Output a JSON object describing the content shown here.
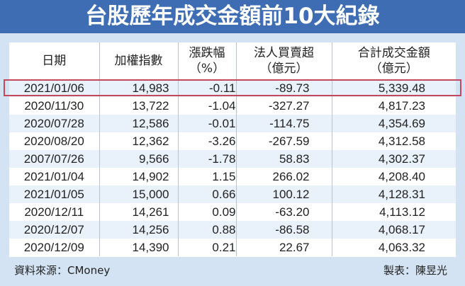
{
  "title": "台股歷年成交金額前10大紀錄",
  "table": {
    "headers": [
      {
        "line1": "日期",
        "line2": ""
      },
      {
        "line1": "加權指數",
        "line2": ""
      },
      {
        "line1": "漲跌幅",
        "line2": "（%）"
      },
      {
        "line1": "法人買賣超",
        "line2": "（億元）"
      },
      {
        "line1": "合計成交金額",
        "line2": "（億元）"
      }
    ],
    "rows": [
      [
        "2021/01/06",
        "14,983",
        "-0.11",
        "-89.73",
        "5,339.48"
      ],
      [
        "2020/11/30",
        "13,722",
        "-1.04",
        "-327.27",
        "4,817.23"
      ],
      [
        "2020/07/28",
        "12,586",
        "-0.01",
        "-114.75",
        "4,354.69"
      ],
      [
        "2020/08/20",
        "12,362",
        "-3.26",
        "-267.59",
        "4,312.58"
      ],
      [
        "2007/07/26",
        "9,566",
        "-1.78",
        "58.83",
        "4,302.37"
      ],
      [
        "2021/01/04",
        "14,902",
        "1.15",
        "266.02",
        "4,208.40"
      ],
      [
        "2021/01/05",
        "15,000",
        "0.66",
        "100.12",
        "4,128.31"
      ],
      [
        "2020/12/11",
        "14,261",
        "0.09",
        "-63.20",
        "4,113.12"
      ],
      [
        "2020/12/07",
        "14,256",
        "0.88",
        "-86.58",
        "4,068.17"
      ],
      [
        "2020/12/09",
        "14,390",
        "0.21",
        "22.67",
        "4,063.32"
      ]
    ],
    "highlighted_row": 0
  },
  "footer": {
    "source": "資料來源：CMoney",
    "author": "製表：陳昱光"
  },
  "colors": {
    "title_bg": "#3f6db3",
    "page_bg": "#d3e3f3",
    "row_alt": "#e9f1fa",
    "highlight_border": "#c4485c"
  },
  "chart_data": {
    "type": "table",
    "title": "台股歷年成交金額前10大紀錄",
    "columns": [
      "日期",
      "加權指數",
      "漲跌幅（%）",
      "法人買賣超（億元）",
      "合計成交金額（億元）"
    ],
    "rows": [
      [
        "2021/01/06",
        14983,
        -0.11,
        -89.73,
        5339.48
      ],
      [
        "2020/11/30",
        13722,
        -1.04,
        -327.27,
        4817.23
      ],
      [
        "2020/07/28",
        12586,
        -0.01,
        -114.75,
        4354.69
      ],
      [
        "2020/08/20",
        12362,
        -3.26,
        -267.59,
        4312.58
      ],
      [
        "2007/07/26",
        9566,
        -1.78,
        58.83,
        4302.37
      ],
      [
        "2021/01/04",
        14902,
        1.15,
        266.02,
        4208.4
      ],
      [
        "2021/01/05",
        15000,
        0.66,
        100.12,
        4128.31
      ],
      [
        "2020/12/11",
        14261,
        0.09,
        -63.2,
        4113.12
      ],
      [
        "2020/12/07",
        14256,
        0.88,
        -86.58,
        4068.17
      ],
      [
        "2020/12/09",
        14390,
        0.21,
        22.67,
        4063.32
      ]
    ],
    "source": "資料來源：CMoney",
    "note": "製表：陳昱光"
  }
}
